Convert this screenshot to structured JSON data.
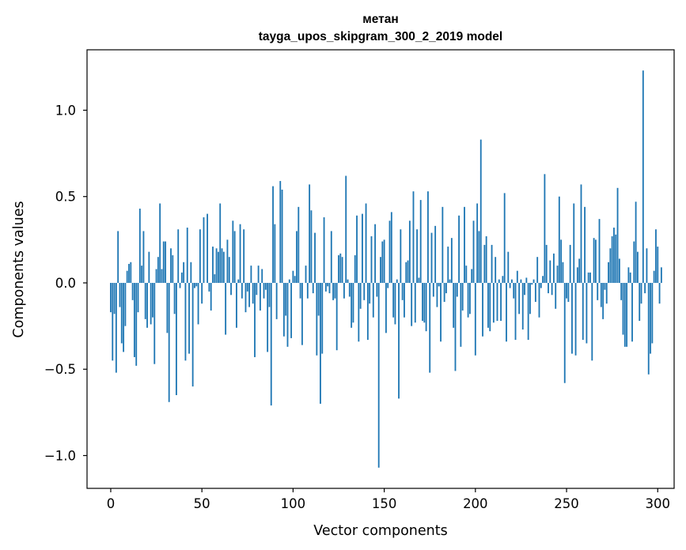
{
  "chart_data": {
    "type": "bar",
    "title": "метан",
    "subtitle": "tayga_upos_skipgram_300_2_2019 model",
    "xlabel": "Vector components",
    "ylabel": "Components values",
    "xlim": [
      -13,
      309
    ],
    "ylim": [
      -1.19,
      1.35
    ],
    "xticks": [
      0,
      50,
      100,
      150,
      200,
      250,
      300
    ],
    "yticks": [
      -1.0,
      -0.5,
      0.0,
      0.5,
      1.0
    ],
    "ytick_labels": [
      "−1.0",
      "−0.5",
      "0.0",
      "0.5",
      "1.0"
    ],
    "grid": false,
    "bar_color": "#1f77b4",
    "values": [
      -0.17,
      -0.45,
      -0.18,
      -0.52,
      0.3,
      -0.14,
      -0.35,
      -0.4,
      -0.25,
      0.07,
      0.11,
      0.12,
      -0.1,
      -0.43,
      -0.48,
      -0.17,
      0.43,
      0.1,
      0.3,
      -0.21,
      -0.26,
      0.18,
      -0.24,
      -0.2,
      -0.47,
      0.08,
      0.15,
      0.46,
      0.08,
      0.24,
      0.24,
      -0.29,
      -0.69,
      0.2,
      0.16,
      -0.18,
      -0.65,
      0.31,
      -0.03,
      0.06,
      0.12,
      -0.45,
      0.32,
      -0.41,
      0.12,
      -0.6,
      -0.03,
      -0.02,
      -0.24,
      0.31,
      -0.12,
      0.38,
      0.0,
      0.4,
      -0.05,
      -0.16,
      0.21,
      0.05,
      0.2,
      0.18,
      0.46,
      0.2,
      0.18,
      -0.3,
      0.25,
      0.15,
      -0.07,
      0.36,
      0.3,
      -0.26,
      0.02,
      0.34,
      -0.09,
      0.31,
      -0.17,
      -0.05,
      -0.14,
      0.1,
      -0.12,
      -0.43,
      -0.07,
      0.1,
      -0.16,
      0.08,
      -0.09,
      -0.04,
      -0.4,
      -0.14,
      -0.71,
      0.56,
      0.34,
      -0.21,
      0.0,
      0.59,
      0.54,
      -0.31,
      -0.19,
      -0.37,
      0.02,
      -0.32,
      0.07,
      0.04,
      0.3,
      0.44,
      -0.09,
      -0.36,
      0.0,
      0.1,
      -0.09,
      0.57,
      0.42,
      -0.06,
      0.29,
      -0.42,
      -0.19,
      -0.7,
      -0.41,
      0.38,
      -0.05,
      -0.02,
      -0.06,
      0.3,
      -0.1,
      -0.09,
      -0.39,
      0.16,
      0.17,
      0.15,
      -0.09,
      0.62,
      0.02,
      -0.08,
      -0.26,
      -0.23,
      0.16,
      0.39,
      -0.34,
      -0.15,
      0.4,
      -0.1,
      0.46,
      -0.33,
      -0.12,
      0.27,
      -0.2,
      0.34,
      -0.08,
      -1.07,
      0.15,
      0.24,
      0.25,
      -0.29,
      -0.03,
      0.36,
      0.41,
      -0.2,
      -0.24,
      0.02,
      -0.67,
      0.31,
      -0.1,
      -0.2,
      0.12,
      0.13,
      0.36,
      -0.25,
      0.53,
      -0.23,
      0.31,
      0.03,
      0.48,
      -0.22,
      -0.23,
      -0.28,
      0.53,
      -0.52,
      0.29,
      -0.08,
      0.33,
      -0.14,
      -0.02,
      -0.34,
      0.44,
      -0.11,
      -0.06,
      0.21,
      0.02,
      0.26,
      -0.26,
      -0.51,
      -0.08,
      0.39,
      -0.37,
      -0.16,
      0.44,
      0.1,
      -0.2,
      -0.18,
      0.08,
      0.36,
      -0.42,
      0.46,
      0.3,
      0.83,
      -0.31,
      0.22,
      0.27,
      -0.26,
      -0.28,
      0.22,
      -0.23,
      0.15,
      -0.22,
      0.02,
      -0.22,
      0.04,
      0.52,
      -0.34,
      0.18,
      -0.03,
      0.02,
      -0.09,
      -0.33,
      0.07,
      -0.18,
      0.02,
      -0.27,
      -0.07,
      0.03,
      -0.33,
      -0.18,
      -0.01,
      0.02,
      -0.11,
      0.15,
      -0.2,
      -0.03,
      0.04,
      0.63,
      0.22,
      -0.06,
      0.13,
      -0.07,
      0.17,
      -0.15,
      0.1,
      0.5,
      0.25,
      0.12,
      -0.58,
      -0.09,
      -0.11,
      0.22,
      -0.41,
      0.46,
      -0.42,
      0.09,
      0.14,
      0.57,
      -0.33,
      0.44,
      -0.35,
      0.06,
      0.06,
      -0.45,
      0.26,
      0.25,
      -0.1,
      0.37,
      -0.14,
      -0.21,
      -0.04,
      -0.12,
      0.12,
      0.2,
      0.27,
      0.32,
      0.28,
      0.55,
      0.14,
      -0.1,
      -0.3,
      -0.37,
      -0.37,
      0.09,
      0.06,
      -0.34,
      0.24,
      0.47,
      0.18,
      -0.22,
      -0.12,
      1.23,
      -0.06,
      0.2,
      -0.53,
      -0.41,
      -0.35,
      0.07,
      0.31,
      0.21,
      -0.12,
      0.09
    ]
  }
}
